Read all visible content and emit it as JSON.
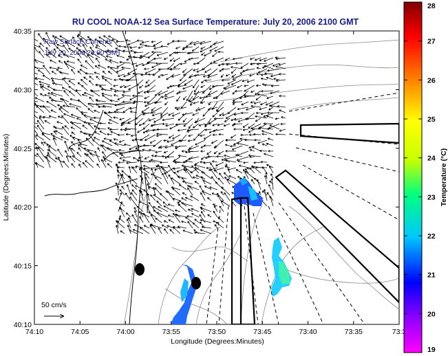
{
  "title": "RU COOL  NOAA-12  Sea Surface Temperature:  July 20, 2006 2100 GMT",
  "overlay": {
    "line1": "Raw Surface Currents",
    "line2": "July 20, 2006 20:00 GMT"
  },
  "axes": {
    "xlabel": "Longitude (Degrees:Minutes)",
    "ylabel": "Latitude (Degrees:Minutes)",
    "xticks": [
      "74:10",
      "74:05",
      "74:00",
      "73:55",
      "73:50",
      "73:45",
      "73:40",
      "73:35",
      "73:3"
    ],
    "yticks": [
      "40:35",
      "40:30",
      "40:25",
      "40:20",
      "40:15",
      "40:10"
    ]
  },
  "scale": {
    "label": "50 cm/s"
  },
  "colorbar": {
    "label": "Temperature (°C)",
    "ticks": [
      "28",
      "27",
      "26",
      "25",
      "24",
      "23",
      "22",
      "21",
      "20",
      "19"
    ],
    "min": 19,
    "max": 28,
    "colors": [
      "#ff00ff",
      "#8000ff",
      "#0000ff",
      "#00c8ff",
      "#00ff80",
      "#c8ff00",
      "#ffff00",
      "#ff8000",
      "#ff0000",
      "#800000"
    ]
  },
  "chart_data": {
    "type": "map",
    "x_range": [
      "74:10",
      "73:30"
    ],
    "y_range": [
      "40:10",
      "40:35"
    ],
    "currents_visible": true,
    "sst_patches_visible": true
  }
}
